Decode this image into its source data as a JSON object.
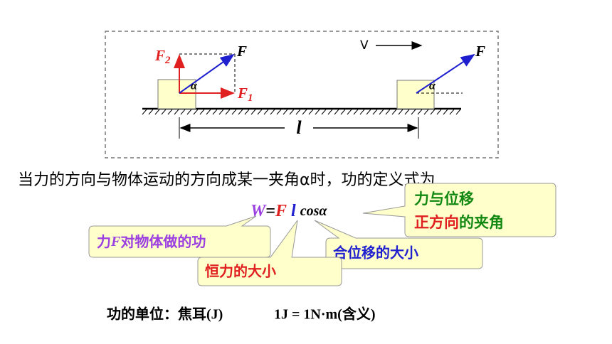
{
  "diagram": {
    "f2_label": {
      "main": "F",
      "sub": "2"
    },
    "f_label_left": "F",
    "alpha_left": "α",
    "f1_label": {
      "main": "F",
      "sub": "1"
    },
    "velocity_label": "V",
    "f_label_right": "F",
    "alpha_right": "α",
    "distance_label": "l"
  },
  "sentence": "当力的方向与物体运动的方向成某一夹角α时，功的定义式为",
  "formula": {
    "w": "W",
    "eq": "=",
    "f": "F",
    "l": "l",
    "cos": "cosα"
  },
  "callouts": {
    "angle": {
      "line1": "力与位移",
      "line2_red": "正方向",
      "line2_green": "的夹角"
    },
    "work": {
      "part1": "力",
      "part2": "F",
      "part3": "对物体做的功"
    },
    "force": "恒力的大小",
    "displacement": "合位移的大小"
  },
  "footer": {
    "unit": "功的单位：焦耳(J)",
    "definition": "1J = 1N·m(含义)"
  }
}
